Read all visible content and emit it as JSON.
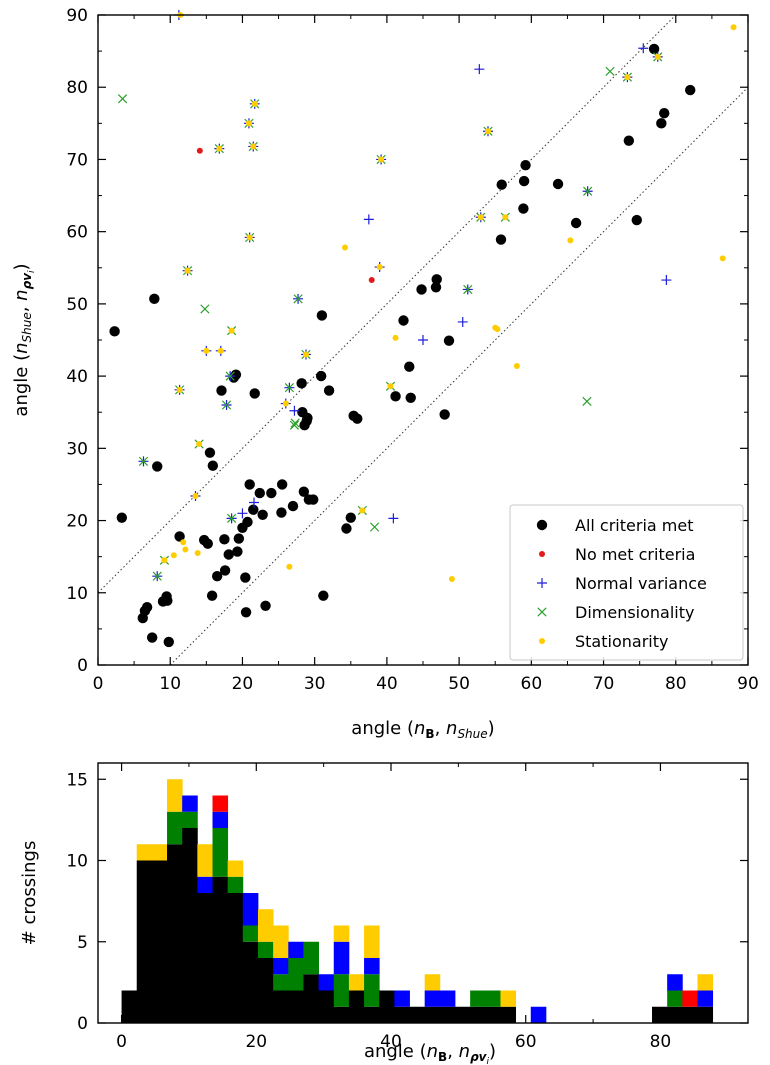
{
  "chart_data": [
    {
      "type": "scatter",
      "title": "",
      "xlabel": {
        "prefix": "angle (",
        "a": "n",
        "a_sub": "B",
        "sep": ", ",
        "b": "n",
        "b_sub": "Shue",
        "suffix": ")"
      },
      "ylabel": {
        "prefix": "angle (",
        "a": "n",
        "a_sub": "Shue",
        "sep": ", ",
        "b": "n",
        "b_sub": "ρv",
        "b_sub2": "i",
        "suffix": ")"
      },
      "xlim": [
        0,
        90
      ],
      "ylim": [
        0,
        90
      ],
      "xticks": [
        0,
        10,
        20,
        30,
        40,
        50,
        60,
        70,
        80,
        90
      ],
      "yticks": [
        0,
        10,
        20,
        30,
        40,
        50,
        60,
        70,
        80,
        90
      ],
      "grid": false,
      "legend_position": "lower-right",
      "reference_lines": [
        {
          "slope": 1,
          "intercept": 10,
          "style": "dotted"
        },
        {
          "slope": 1,
          "intercept": -10,
          "style": "dotted"
        }
      ],
      "series": [
        {
          "name": "All criteria met",
          "marker": "circle",
          "color": "#000000",
          "points": [
            [
              2.3,
              46.2
            ],
            [
              3.3,
              20.4
            ],
            [
              6.2,
              6.5
            ],
            [
              6.5,
              7.5
            ],
            [
              6.8,
              8
            ],
            [
              7.5,
              3.8
            ],
            [
              7.8,
              50.7
            ],
            [
              8.2,
              27.5
            ],
            [
              9,
              8.8
            ],
            [
              9.5,
              9.5
            ],
            [
              9.6,
              8.9
            ],
            [
              9.8,
              3.2
            ],
            [
              11.3,
              17.8
            ],
            [
              14.7,
              17.3
            ],
            [
              15.2,
              16.8
            ],
            [
              15.5,
              29.4
            ],
            [
              15.8,
              9.6
            ],
            [
              15.9,
              27.6
            ],
            [
              16.5,
              12.3
            ],
            [
              17.1,
              38
            ],
            [
              17.5,
              17.4
            ],
            [
              17.6,
              13.1
            ],
            [
              18.1,
              15.3
            ],
            [
              18.8,
              39.8
            ],
            [
              19.1,
              40.2
            ],
            [
              19.3,
              15.7
            ],
            [
              19.5,
              17.5
            ],
            [
              20,
              19
            ],
            [
              20.4,
              12.1
            ],
            [
              20.5,
              7.3
            ],
            [
              20.7,
              19.8
            ],
            [
              21,
              25
            ],
            [
              21.5,
              21.5
            ],
            [
              21.7,
              37.6
            ],
            [
              22.4,
              23.8
            ],
            [
              22.8,
              20.8
            ],
            [
              23.2,
              8.2
            ],
            [
              24,
              23.8
            ],
            [
              25.4,
              21.1
            ],
            [
              25.5,
              25
            ],
            [
              27,
              22
            ],
            [
              28.2,
              39
            ],
            [
              28.3,
              35
            ],
            [
              28.5,
              24
            ],
            [
              28.6,
              33.2
            ],
            [
              28.9,
              33.8
            ],
            [
              29,
              34.2
            ],
            [
              29.2,
              22.9
            ],
            [
              29.8,
              22.9
            ],
            [
              30.9,
              40
            ],
            [
              31,
              48.4
            ],
            [
              31.2,
              9.6
            ],
            [
              32,
              38
            ],
            [
              34.4,
              18.9
            ],
            [
              35,
              20.4
            ],
            [
              35.4,
              34.5
            ],
            [
              35.9,
              34.1
            ],
            [
              41.2,
              37.2
            ],
            [
              42.3,
              47.7
            ],
            [
              43.1,
              41.3
            ],
            [
              43.3,
              37
            ],
            [
              44.8,
              52
            ],
            [
              46.8,
              52.3
            ],
            [
              46.9,
              53.4
            ],
            [
              48,
              34.7
            ],
            [
              48.6,
              44.9
            ],
            [
              55.8,
              58.9
            ],
            [
              55.9,
              66.5
            ],
            [
              58.9,
              63.2
            ],
            [
              59,
              67
            ],
            [
              59.2,
              69.2
            ],
            [
              63.7,
              66.6
            ],
            [
              66.2,
              61.2
            ],
            [
              73.5,
              72.6
            ],
            [
              74.6,
              61.6
            ],
            [
              77,
              85.3
            ],
            [
              78,
              75
            ],
            [
              78.4,
              76.4
            ],
            [
              82,
              79.6
            ]
          ]
        },
        {
          "name": "No met criteria",
          "marker": "dot",
          "color": "#e31a1c",
          "points": [
            [
              14.1,
              71.2
            ],
            [
              37.9,
              53.3
            ]
          ]
        },
        {
          "name": "Normal variance",
          "marker": "plus",
          "color": "#1f1fd6",
          "points": [
            [
              6.3,
              28.2
            ],
            [
              8.2,
              12.3
            ],
            [
              11.2,
              90
            ],
            [
              11.3,
              38.1
            ],
            [
              12.4,
              54.6
            ],
            [
              13.5,
              23.4
            ],
            [
              15,
              43.5
            ],
            [
              16.8,
              71.5
            ],
            [
              17,
              43.5
            ],
            [
              17.8,
              36
            ],
            [
              18.3,
              40
            ],
            [
              18.5,
              20.3
            ],
            [
              20,
              21
            ],
            [
              20.9,
              75
            ],
            [
              21,
              59.2
            ],
            [
              21.5,
              71.8
            ],
            [
              21.6,
              22.5
            ],
            [
              21.7,
              77.7
            ],
            [
              26,
              36.2
            ],
            [
              26.5,
              38.4
            ],
            [
              27.2,
              35.2
            ],
            [
              27.7,
              50.7
            ],
            [
              28.8,
              43
            ],
            [
              37.5,
              61.7
            ],
            [
              39,
              55.1
            ],
            [
              39.2,
              70
            ],
            [
              40.9,
              20.3
            ],
            [
              45,
              45
            ],
            [
              50.5,
              47.5
            ],
            [
              51.2,
              52
            ],
            [
              52.8,
              82.5
            ],
            [
              53,
              62
            ],
            [
              54,
              73.9
            ],
            [
              67.8,
              65.6
            ],
            [
              73.3,
              81.4
            ],
            [
              75.5,
              85.4
            ],
            [
              77.5,
              84.2
            ],
            [
              78.7,
              53.3
            ]
          ]
        },
        {
          "name": "Dimensionality",
          "marker": "x",
          "color": "#2ca02c",
          "points": [
            [
              3.4,
              78.4
            ],
            [
              6.3,
              28.2
            ],
            [
              8.2,
              12.3
            ],
            [
              9.2,
              14.5
            ],
            [
              11.3,
              38.1
            ],
            [
              12.4,
              54.6
            ],
            [
              14,
              30.6
            ],
            [
              14.8,
              49.3
            ],
            [
              16.8,
              71.5
            ],
            [
              17.8,
              36
            ],
            [
              18.3,
              40
            ],
            [
              18.5,
              46.3
            ],
            [
              18.5,
              20.3
            ],
            [
              20.9,
              75
            ],
            [
              21,
              59.2
            ],
            [
              21.5,
              71.8
            ],
            [
              21.7,
              77.7
            ],
            [
              26.5,
              38.4
            ],
            [
              27.2,
              33.2
            ],
            [
              27.3,
              33.5
            ],
            [
              27.7,
              50.7
            ],
            [
              28.8,
              43
            ],
            [
              36.6,
              21.4
            ],
            [
              38.3,
              19.1
            ],
            [
              39.2,
              70
            ],
            [
              40.5,
              38.6
            ],
            [
              51.2,
              52
            ],
            [
              53,
              62
            ],
            [
              54,
              73.9
            ],
            [
              56.4,
              62
            ],
            [
              67.7,
              36.5
            ],
            [
              67.8,
              65.6
            ],
            [
              70.9,
              82.2
            ],
            [
              73.3,
              81.4
            ],
            [
              77.5,
              84.2
            ]
          ]
        },
        {
          "name": "Stationarity",
          "marker": "dot",
          "color": "#ffcc00",
          "points": [
            [
              9.2,
              14.5
            ],
            [
              10.5,
              15.2
            ],
            [
              11.3,
              38.1
            ],
            [
              11.4,
              90
            ],
            [
              11.8,
              17
            ],
            [
              12.1,
              16
            ],
            [
              12.4,
              54.6
            ],
            [
              13.5,
              23.4
            ],
            [
              13.8,
              15.5
            ],
            [
              14,
              30.6
            ],
            [
              15,
              43.5
            ],
            [
              16.8,
              71.5
            ],
            [
              17,
              43.5
            ],
            [
              18.5,
              46.3
            ],
            [
              20.9,
              75
            ],
            [
              21,
              59.2
            ],
            [
              21.5,
              71.8
            ],
            [
              21.7,
              77.7
            ],
            [
              26,
              36.2
            ],
            [
              26.5,
              13.6
            ],
            [
              28.8,
              43
            ],
            [
              34.2,
              57.8
            ],
            [
              36.6,
              21.4
            ],
            [
              39,
              55.1
            ],
            [
              39.2,
              70
            ],
            [
              40.5,
              38.6
            ],
            [
              41.2,
              45.3
            ],
            [
              49,
              11.9
            ],
            [
              53,
              62
            ],
            [
              54,
              73.9
            ],
            [
              55,
              46.7
            ],
            [
              55.3,
              46.5
            ],
            [
              56.4,
              62
            ],
            [
              58,
              41.4
            ],
            [
              65.4,
              58.8
            ],
            [
              73.3,
              81.4
            ],
            [
              77.5,
              84.2
            ],
            [
              86.5,
              56.3
            ],
            [
              88,
              88.3
            ]
          ]
        }
      ]
    },
    {
      "type": "bar",
      "subtype": "stacked-histogram",
      "title": "",
      "xlabel": {
        "prefix": "angle (",
        "a": "n",
        "a_sub": "B",
        "sep": ", ",
        "b": "n",
        "b_sub": "ρv",
        "b_sub2": "i",
        "suffix": ")"
      },
      "ylabel": "# crossings",
      "xlim": [
        -3.5,
        93
      ],
      "ylim": [
        0,
        16
      ],
      "xticks": [
        0,
        20,
        40,
        60,
        80
      ],
      "yticks": [
        0,
        5,
        10,
        15
      ],
      "bin_width": 2.25,
      "bin_starts": [
        0,
        2.25,
        4.5,
        6.75,
        9,
        11.25,
        13.5,
        15.75,
        18,
        20.25,
        22.5,
        24.75,
        27,
        29.25,
        31.5,
        33.75,
        36,
        38.25,
        40.5,
        42.75,
        45,
        47.25,
        49.5,
        51.75,
        54,
        56.25,
        58.5,
        60.75,
        63,
        65.25,
        67.5,
        69.75,
        72,
        74.25,
        76.5,
        78.75,
        81,
        83.25,
        85.5
      ],
      "series": [
        {
          "name": "All criteria met",
          "color": "#000000",
          "values": [
            2,
            10,
            10,
            11,
            12,
            8,
            9,
            8,
            5,
            4,
            2,
            2,
            3,
            2,
            1,
            2,
            1,
            2,
            1,
            1,
            1,
            1,
            1,
            1,
            1,
            1,
            0,
            0,
            0,
            0,
            0,
            0,
            0,
            0,
            0,
            1,
            1,
            1,
            1
          ]
        },
        {
          "name": "Dimensionality",
          "color": "#008000",
          "values": [
            0,
            0,
            0,
            2,
            1,
            0,
            3,
            1,
            1,
            1,
            1,
            2,
            2,
            0,
            2,
            0,
            2,
            0,
            0,
            0,
            0,
            0,
            0,
            1,
            1,
            0,
            0,
            0,
            0,
            0,
            0,
            0,
            0,
            0,
            0,
            0,
            1,
            0,
            0
          ]
        },
        {
          "name": "Normal variance",
          "color": "#0000ff",
          "values": [
            0,
            0,
            0,
            0,
            1,
            1,
            1,
            0,
            2,
            0,
            1,
            1,
            0,
            1,
            2,
            0,
            1,
            0,
            1,
            0,
            1,
            1,
            0,
            0,
            0,
            0,
            0,
            1,
            0,
            0,
            0,
            0,
            0,
            0,
            0,
            0,
            1,
            0,
            1
          ]
        },
        {
          "name": "No met criteria",
          "color": "#ff0000",
          "values": [
            0,
            0,
            0,
            0,
            0,
            0,
            1,
            0,
            0,
            0,
            0,
            0,
            0,
            0,
            0,
            0,
            0,
            0,
            0,
            0,
            0,
            0,
            0,
            0,
            0,
            0,
            0,
            0,
            0,
            0,
            0,
            0,
            0,
            0,
            0,
            0,
            0,
            1,
            0
          ]
        },
        {
          "name": "Stationarity",
          "color": "#ffcc00",
          "values": [
            0,
            1,
            1,
            2,
            0,
            2,
            0,
            1,
            0,
            2,
            2,
            0,
            0,
            0,
            1,
            1,
            2,
            0,
            0,
            0,
            1,
            0,
            0,
            0,
            0,
            1,
            0,
            0,
            0,
            0,
            0,
            0,
            0,
            0,
            0,
            0,
            0,
            0,
            1
          ]
        }
      ]
    }
  ]
}
